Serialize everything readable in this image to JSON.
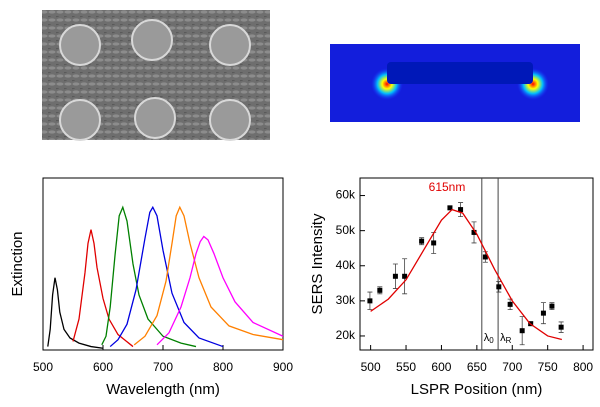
{
  "chart_data": [
    {
      "type": "line",
      "xlabel": "Wavelength (nm)",
      "ylabel": "Extinction",
      "xlim": [
        500,
        900
      ],
      "xticks": [
        500,
        600,
        700,
        800,
        900
      ],
      "ylim": [
        0,
        1
      ],
      "series": [
        {
          "color": "#000000",
          "x": [
            508,
            512,
            516,
            520,
            524,
            528,
            535,
            545,
            560,
            580,
            600
          ],
          "values": [
            0.02,
            0.12,
            0.32,
            0.42,
            0.35,
            0.22,
            0.12,
            0.07,
            0.04,
            0.02,
            0.01
          ]
        },
        {
          "color": "#e00000",
          "x": [
            550,
            560,
            570,
            575,
            580,
            585,
            590,
            600,
            610,
            625,
            650
          ],
          "values": [
            0.05,
            0.18,
            0.45,
            0.62,
            0.7,
            0.62,
            0.48,
            0.3,
            0.18,
            0.09,
            0.02
          ]
        },
        {
          "color": "#008000",
          "x": [
            598,
            605,
            612,
            620,
            627,
            633,
            640,
            650,
            660,
            675,
            700,
            730,
            755
          ],
          "values": [
            0.03,
            0.08,
            0.25,
            0.55,
            0.78,
            0.83,
            0.75,
            0.5,
            0.32,
            0.18,
            0.08,
            0.04,
            0.02
          ]
        },
        {
          "color": "#0000e0",
          "x": [
            612,
            625,
            640,
            655,
            670,
            678,
            683,
            690,
            700,
            715,
            735,
            760,
            800
          ],
          "values": [
            0.02,
            0.06,
            0.15,
            0.35,
            0.65,
            0.8,
            0.83,
            0.78,
            0.58,
            0.33,
            0.16,
            0.07,
            0.02
          ]
        },
        {
          "color": "#ff8000",
          "x": [
            652,
            670,
            690,
            705,
            715,
            722,
            728,
            735,
            745,
            760,
            780,
            810,
            850,
            900
          ],
          "values": [
            0.03,
            0.08,
            0.2,
            0.4,
            0.62,
            0.78,
            0.83,
            0.78,
            0.62,
            0.42,
            0.25,
            0.14,
            0.09,
            0.06
          ]
        },
        {
          "color": "#ff00ff",
          "x": [
            690,
            710,
            730,
            745,
            755,
            762,
            768,
            775,
            785,
            800,
            820,
            850,
            900
          ],
          "values": [
            0.03,
            0.1,
            0.25,
            0.42,
            0.56,
            0.63,
            0.66,
            0.64,
            0.56,
            0.42,
            0.28,
            0.16,
            0.08
          ]
        }
      ]
    },
    {
      "type": "scatter",
      "xlabel": "LSPR Position (nm)",
      "ylabel": "SERS Intensity",
      "annotation": "615nm",
      "xlim": [
        485,
        814
      ],
      "xticks": [
        500,
        550,
        600,
        650,
        700,
        750,
        800
      ],
      "ylim": [
        16000,
        65000
      ],
      "yticks": [
        {
          "value": 20000,
          "label": "20k"
        },
        {
          "value": 30000,
          "label": "30k"
        },
        {
          "value": 40000,
          "label": "40k"
        },
        {
          "value": 50000,
          "label": "50k"
        },
        {
          "value": 60000,
          "label": "60k"
        }
      ],
      "vlines": [
        {
          "value": 657,
          "label": "λ",
          "sub": "0"
        },
        {
          "value": 680,
          "label": "λ",
          "sub": "R"
        }
      ],
      "series": [
        {
          "style": "markers",
          "color": "#000000",
          "x": [
            499,
            513,
            535,
            548,
            572,
            589,
            612,
            627,
            646,
            662,
            681,
            697,
            714,
            726,
            744,
            756,
            769
          ],
          "values": [
            30000,
            33000,
            37000,
            37000,
            47000,
            46500,
            56500,
            56000,
            49500,
            42500,
            34000,
            29000,
            21500,
            23500,
            26500,
            28500,
            22500
          ],
          "errors": [
            2500,
            1000,
            3500,
            5000,
            1000,
            3000,
            500,
            2000,
            3000,
            1500,
            1500,
            1500,
            4000,
            500,
            3000,
            1000,
            1500
          ]
        },
        {
          "style": "line",
          "color": "#e00000",
          "x": [
            500,
            525,
            550,
            575,
            600,
            615,
            630,
            650,
            675,
            700,
            725,
            750,
            770
          ],
          "values": [
            27000,
            30500,
            36000,
            44500,
            53000,
            56000,
            55000,
            49000,
            39000,
            30000,
            23500,
            20000,
            19000
          ]
        }
      ]
    }
  ]
}
